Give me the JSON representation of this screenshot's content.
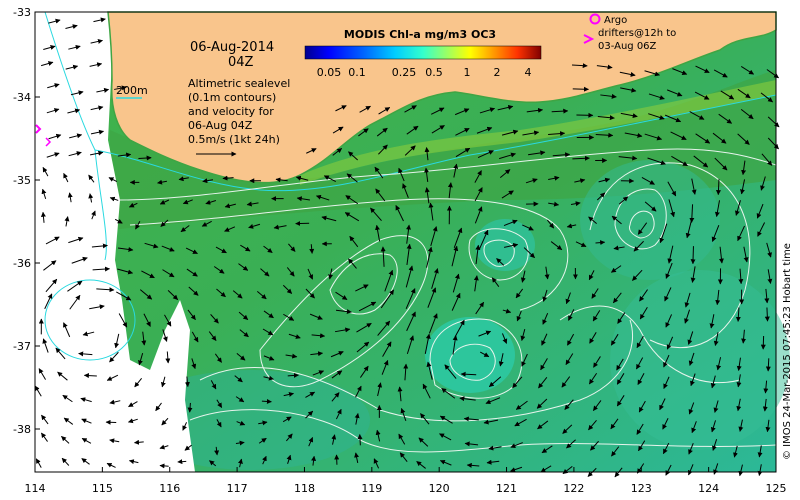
{
  "map": {
    "title": "MODIS Chl-a mg/m3 OC3",
    "date": "06-Aug-2014",
    "time": "04Z",
    "bathy_label": "200m",
    "description_lines": [
      "Altimetric sealevel",
      "(0.1m contours)",
      "and velocity for",
      "06-Aug 04Z"
    ],
    "scale_label": "0.5m/s (1kt 24h)",
    "argo_lines": [
      "Argo",
      "drifters@12h to",
      "03-Aug 06Z"
    ],
    "credit": "© IMOS 24-Mar-2015 07:45:23 Hobart time",
    "colorbar_ticks": [
      "0.05",
      "0.1",
      "0.25",
      "0.5",
      "1",
      "2",
      "4"
    ],
    "colorbar_colors": [
      "#00008f",
      "#0000ff",
      "#0066ff",
      "#00ccff",
      "#33ffcc",
      "#99ff66",
      "#ffff00",
      "#ff9900",
      "#ff3300",
      "#cc0000",
      "#800000"
    ],
    "lon_ticks": [
      "114",
      "115",
      "116",
      "117",
      "118",
      "119",
      "120",
      "121",
      "122",
      "123",
      "124",
      "125"
    ],
    "lat_ticks": [
      "-33",
      "-34",
      "-35",
      "-36",
      "-37",
      "-38"
    ],
    "colors": {
      "land": "#f9c58c",
      "ocean_green": "#3fb24a",
      "ocean_teal": "#2fc29a",
      "contour": "#e6f4ec",
      "isobath": "#2ad9e0",
      "argo": "#ff00ff"
    }
  }
}
